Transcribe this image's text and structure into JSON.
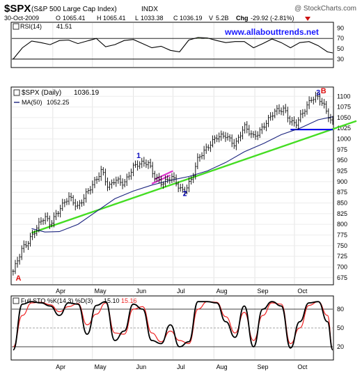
{
  "header": {
    "symbol": "$SPX",
    "index_name": "(S&P 500 Large Cap Index)",
    "exchange": "INDX",
    "copyright": "@ StockCharts.com",
    "date": "30-Oct-2009",
    "open_label": "O",
    "open": "1065.41",
    "high_label": "H",
    "high": "1065.41",
    "low_label": "L",
    "low": "1033.38",
    "close_label": "C",
    "close": "1036.19",
    "volume_label": "V",
    "volume": "5.2B",
    "change_label": "Chg",
    "change": "-29.92 (-2.81%)"
  },
  "website": "www.allabouttrends.net",
  "colors": {
    "price": "#000000",
    "ma": "#1a237e",
    "uptrend": "#44dd22",
    "support": "#0000ee",
    "flag": "#dd33cc",
    "wave_label": "#1010c0",
    "ab_label": "#dd1111",
    "stoch_d": "#ee2222",
    "website": "#1a1aff"
  },
  "months": [
    "Apr",
    "May",
    "Jun",
    "Jul",
    "Aug",
    "Sep",
    "Oct"
  ],
  "chart_data": [
    {
      "type": "line",
      "title": "RSI(14)",
      "value_label": "41.51",
      "ylim": [
        15,
        100
      ],
      "yticks": [
        90,
        70,
        50,
        30
      ],
      "reference_lines": [
        70,
        30
      ],
      "series": [
        {
          "name": "RSI(14)",
          "x": [
            "2009-03-02",
            "2009-03-09",
            "2009-03-16",
            "2009-03-23",
            "2009-03-30",
            "2009-04-06",
            "2009-04-13",
            "2009-04-20",
            "2009-04-27",
            "2009-05-04",
            "2009-05-11",
            "2009-05-18",
            "2009-05-25",
            "2009-06-01",
            "2009-06-08",
            "2009-06-15",
            "2009-06-22",
            "2009-06-29",
            "2009-07-06",
            "2009-07-13",
            "2009-07-20",
            "2009-07-27",
            "2009-08-03",
            "2009-08-10",
            "2009-08-17",
            "2009-08-24",
            "2009-08-31",
            "2009-09-07",
            "2009-09-14",
            "2009-09-21",
            "2009-09-28",
            "2009-10-05",
            "2009-10-12",
            "2009-10-19",
            "2009-10-26",
            "2009-10-30"
          ],
          "values": [
            30,
            52,
            65,
            62,
            58,
            66,
            67,
            60,
            65,
            70,
            54,
            58,
            66,
            68,
            60,
            52,
            55,
            47,
            44,
            67,
            72,
            71,
            66,
            62,
            64,
            64,
            52,
            60,
            69,
            62,
            52,
            62,
            64,
            56,
            44,
            42
          ]
        }
      ]
    },
    {
      "type": "line",
      "title": "$SPX (Daily)",
      "value_label": "1036.19",
      "ylim": [
        660,
        1120
      ],
      "yticks": [
        675,
        700,
        725,
        750,
        775,
        800,
        825,
        850,
        875,
        900,
        925,
        950,
        975,
        1000,
        1025,
        1050,
        1075,
        1100
      ],
      "series": [
        {
          "name": "$SPX (Daily)",
          "x": [
            "2009-03-02",
            "2009-03-09",
            "2009-03-13",
            "2009-03-16",
            "2009-03-23",
            "2009-03-26",
            "2009-03-30",
            "2009-04-06",
            "2009-04-13",
            "2009-04-20",
            "2009-04-27",
            "2009-05-04",
            "2009-05-08",
            "2009-05-13",
            "2009-05-18",
            "2009-05-25",
            "2009-06-01",
            "2009-06-05",
            "2009-06-12",
            "2009-06-17",
            "2009-06-23",
            "2009-06-30",
            "2009-07-06",
            "2009-07-08",
            "2009-07-10",
            "2009-07-15",
            "2009-07-20",
            "2009-07-27",
            "2009-08-03",
            "2009-08-10",
            "2009-08-17",
            "2009-08-24",
            "2009-08-31",
            "2009-09-04",
            "2009-09-10",
            "2009-09-16",
            "2009-09-23",
            "2009-09-28",
            "2009-10-02",
            "2009-10-08",
            "2009-10-14",
            "2009-10-19",
            "2009-10-23",
            "2009-10-28",
            "2009-10-30"
          ],
          "values": [
            690,
            745,
            757,
            772,
            808,
            818,
            800,
            835,
            865,
            840,
            875,
            905,
            928,
            885,
            905,
            895,
            935,
            942,
            945,
            912,
            895,
            912,
            885,
            878,
            880,
            905,
            955,
            980,
            1005,
            1008,
            985,
            1030,
            1005,
            1015,
            1040,
            1065,
            1070,
            1040,
            1035,
            1065,
            1095,
            1098,
            1080,
            1045,
            1036
          ]
        },
        {
          "name": "MA(50)",
          "value_label": "1052.25",
          "x": [
            "2009-03-16",
            "2009-03-26",
            "2009-04-06",
            "2009-04-20",
            "2009-05-04",
            "2009-05-18",
            "2009-06-01",
            "2009-06-15",
            "2009-06-29",
            "2009-07-13",
            "2009-07-27",
            "2009-08-10",
            "2009-08-24",
            "2009-09-08",
            "2009-09-21",
            "2009-10-05",
            "2009-10-19",
            "2009-10-30"
          ],
          "values": [
            790,
            782,
            783,
            800,
            830,
            860,
            878,
            892,
            903,
            912,
            925,
            945,
            970,
            990,
            1010,
            1025,
            1045,
            1052
          ]
        }
      ],
      "annotations": [
        {
          "text": "A",
          "x": "2009-03-06",
          "y": 668
        },
        {
          "text": "1",
          "x": "2009-06-05",
          "y": 955
        },
        {
          "text": "2",
          "x": "2009-07-10",
          "y": 866
        },
        {
          "text": "3",
          "x": "2009-10-19",
          "y": 1103
        },
        {
          "text": "B",
          "x": "2009-10-23",
          "y": 1107
        }
      ],
      "trendline": {
        "x": [
          "2009-03-16",
          "2009-10-30"
        ],
        "y": [
          780,
          1023
        ]
      },
      "support_line": {
        "x": [
          "2009-09-28",
          "2009-10-30"
        ],
        "y": 1022
      },
      "flag_lines": [
        {
          "x": [
            "2009-06-17",
            "2009-07-01"
          ],
          "y": [
            905,
            925
          ]
        },
        {
          "x": [
            "2009-06-15",
            "2009-06-29"
          ],
          "y": [
            895,
            915
          ]
        }
      ]
    },
    {
      "type": "line",
      "title": "Full STO %K(14,3) %D(3)",
      "k_value": "15.10",
      "d_value": "15.16",
      "ylim": [
        0,
        100
      ],
      "yticks": [
        80,
        50,
        20
      ],
      "reference_lines": [
        80,
        50,
        20
      ],
      "series": [
        {
          "name": "%K(14,3)",
          "x": [
            "2009-03-02",
            "2009-03-09",
            "2009-03-16",
            "2009-03-23",
            "2009-03-30",
            "2009-04-06",
            "2009-04-13",
            "2009-04-20",
            "2009-04-27",
            "2009-05-04",
            "2009-05-11",
            "2009-05-18",
            "2009-05-25",
            "2009-06-01",
            "2009-06-08",
            "2009-06-15",
            "2009-06-22",
            "2009-06-29",
            "2009-07-06",
            "2009-07-13",
            "2009-07-20",
            "2009-07-27",
            "2009-08-03",
            "2009-08-10",
            "2009-08-17",
            "2009-08-24",
            "2009-08-31",
            "2009-09-07",
            "2009-09-14",
            "2009-09-21",
            "2009-09-28",
            "2009-10-05",
            "2009-10-12",
            "2009-10-19",
            "2009-10-26",
            "2009-10-30"
          ],
          "values": [
            15,
            88,
            92,
            90,
            85,
            70,
            90,
            88,
            40,
            86,
            92,
            30,
            45,
            88,
            80,
            30,
            25,
            55,
            20,
            28,
            92,
            92,
            90,
            60,
            35,
            85,
            20,
            80,
            92,
            85,
            18,
            60,
            90,
            92,
            60,
            15
          ]
        },
        {
          "name": "%D(3)",
          "x": [
            "2009-03-02",
            "2009-03-09",
            "2009-03-16",
            "2009-03-23",
            "2009-03-30",
            "2009-04-06",
            "2009-04-13",
            "2009-04-20",
            "2009-04-27",
            "2009-05-04",
            "2009-05-11",
            "2009-05-18",
            "2009-05-25",
            "2009-06-01",
            "2009-06-08",
            "2009-06-15",
            "2009-06-22",
            "2009-06-29",
            "2009-07-06",
            "2009-07-13",
            "2009-07-20",
            "2009-07-27",
            "2009-08-03",
            "2009-08-10",
            "2009-08-17",
            "2009-08-24",
            "2009-08-31",
            "2009-09-07",
            "2009-09-14",
            "2009-09-21",
            "2009-09-28",
            "2009-10-05",
            "2009-10-12",
            "2009-10-19",
            "2009-10-26",
            "2009-10-30"
          ],
          "values": [
            20,
            70,
            90,
            91,
            87,
            76,
            84,
            89,
            55,
            72,
            90,
            42,
            40,
            80,
            84,
            42,
            28,
            45,
            30,
            25,
            80,
            92,
            91,
            68,
            42,
            75,
            30,
            70,
            90,
            88,
            25,
            50,
            86,
            92,
            70,
            15
          ]
        }
      ]
    }
  ]
}
